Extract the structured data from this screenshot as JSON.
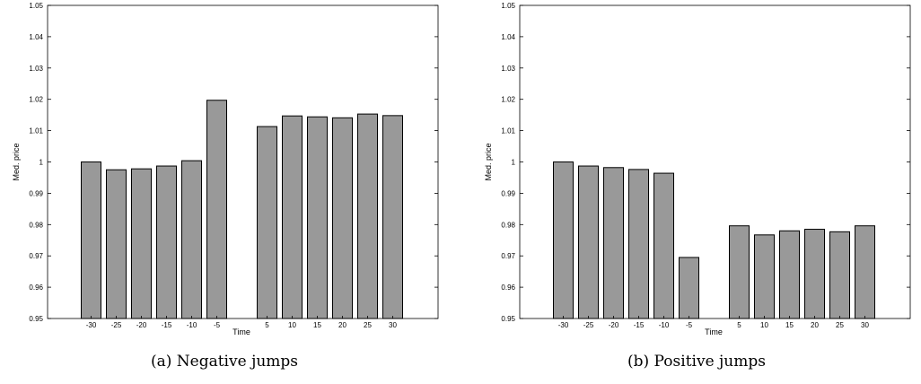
{
  "chart_data": [
    {
      "type": "bar",
      "caption": "(a) Negative jumps",
      "xlabel": "Time",
      "ylabel": "Med. price",
      "ylim": [
        0.95,
        1.05
      ],
      "yticks": [
        "0.95",
        "0.96",
        "0.97",
        "0.98",
        "0.99",
        "1",
        "1.01",
        "1.02",
        "1.03",
        "1.04",
        "1.05"
      ],
      "categories": [
        "-30",
        "-25",
        "-20",
        "-15",
        "-10",
        "-5",
        "5",
        "10",
        "15",
        "20",
        "25",
        "30"
      ],
      "values": [
        1.0,
        0.9975,
        0.9978,
        0.9987,
        1.0004,
        1.0197,
        1.0113,
        1.0147,
        1.0144,
        1.0141,
        1.0153,
        1.0148
      ],
      "bar_color": "#999999",
      "grid": false
    },
    {
      "type": "bar",
      "caption": "(b) Positive jumps",
      "xlabel": "Time",
      "ylabel": "Med. price",
      "ylim": [
        0.95,
        1.05
      ],
      "yticks": [
        "0.95",
        "0.96",
        "0.97",
        "0.98",
        "0.99",
        "1",
        "1.01",
        "1.02",
        "1.03",
        "1.04",
        "1.05"
      ],
      "categories": [
        "-30",
        "-25",
        "-20",
        "-15",
        "-10",
        "-5",
        "5",
        "10",
        "15",
        "20",
        "25",
        "30"
      ],
      "values": [
        1.0,
        0.9987,
        0.9982,
        0.9976,
        0.9964,
        0.9695,
        0.9796,
        0.9767,
        0.978,
        0.9785,
        0.9777,
        0.9796
      ],
      "bar_color": "#999999",
      "grid": false
    }
  ]
}
